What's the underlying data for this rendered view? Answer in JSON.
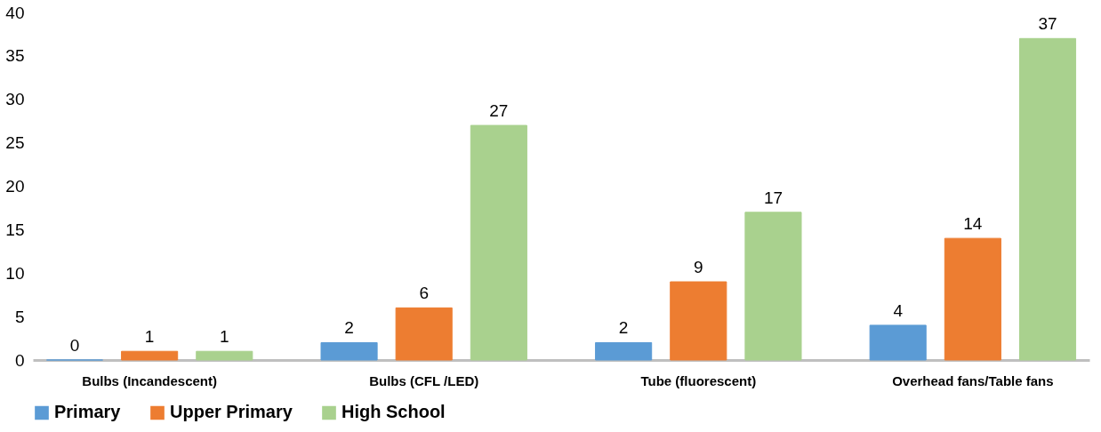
{
  "chart_data": {
    "type": "bar",
    "categories": [
      "Bulbs (Incandescent)",
      "Bulbs (CFL /LED)",
      "Tube (fluorescent)",
      "Overhead fans/Table fans"
    ],
    "series": [
      {
        "name": "Primary",
        "color": "#5b9bd5",
        "values": [
          0,
          2,
          2,
          4
        ]
      },
      {
        "name": "Upper Primary",
        "color": "#ed7d31",
        "values": [
          1,
          6,
          9,
          14
        ]
      },
      {
        "name": "High School",
        "color": "#a9d18e",
        "values": [
          1,
          27,
          17,
          37
        ]
      }
    ],
    "ylim": [
      0,
      40
    ],
    "yticks": [
      0,
      5,
      10,
      15,
      20,
      25,
      30,
      35,
      40
    ],
    "grid": false,
    "legend": "bottom",
    "data_labels": true
  }
}
